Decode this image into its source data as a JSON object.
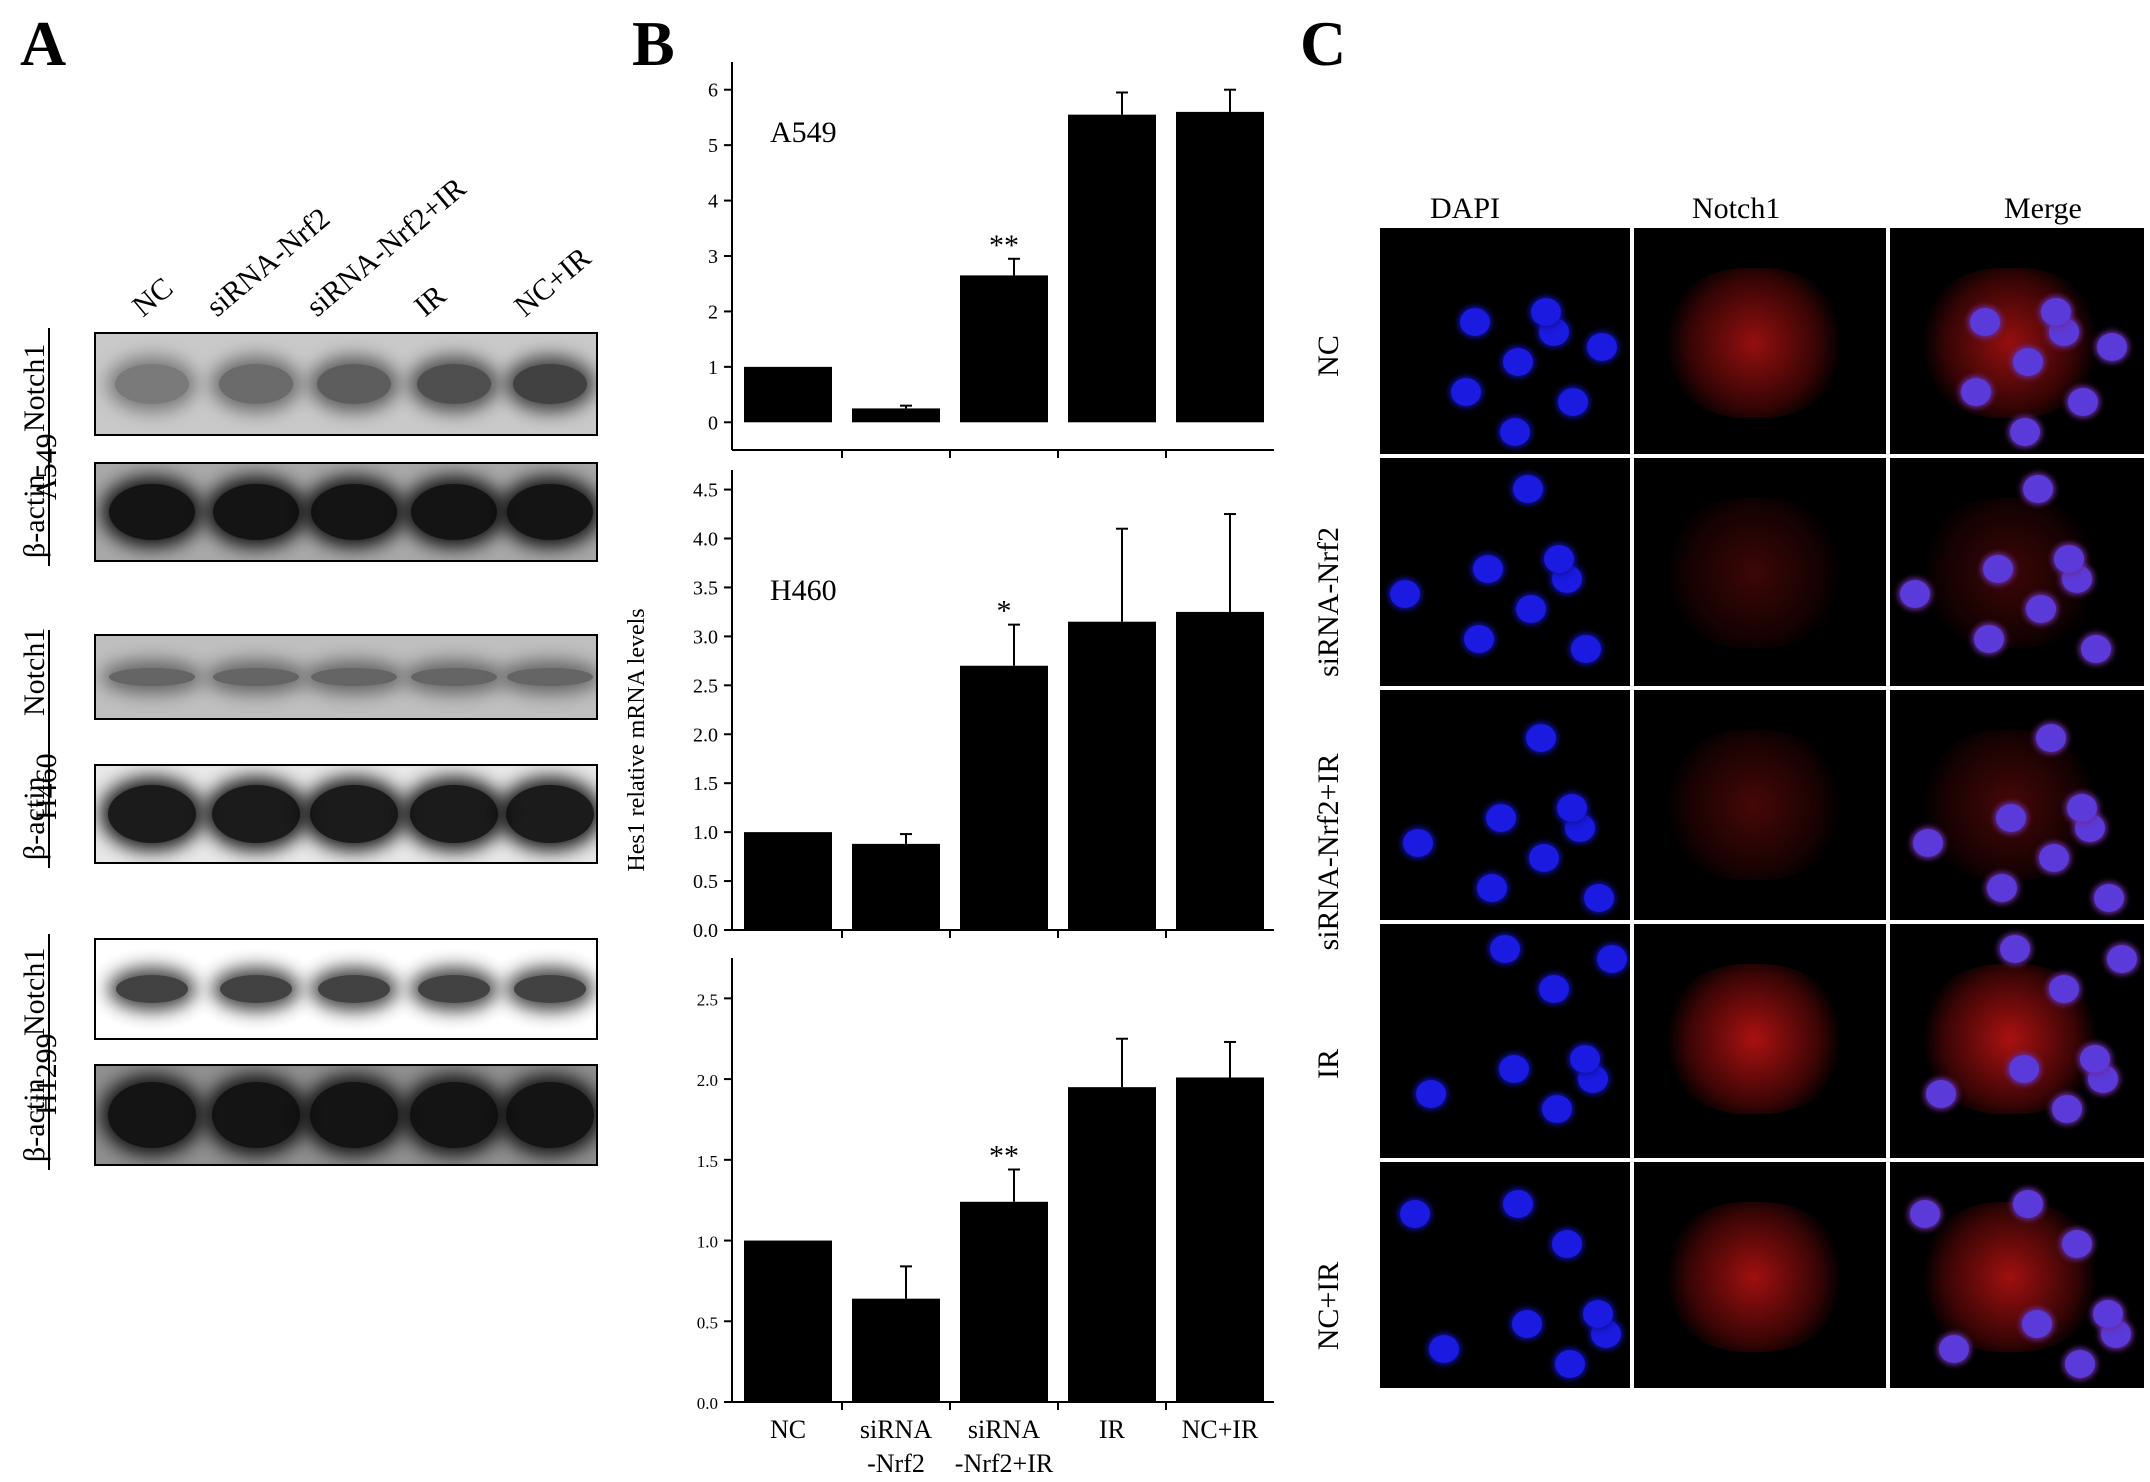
{
  "panels": {
    "a": {
      "letter": "A",
      "lanes": [
        "NC",
        "siRNA-Nrf2",
        "siRNA-Nrf2+IR",
        "IR",
        "NC+IR"
      ],
      "groups": [
        {
          "cell_line": "A549",
          "rows": [
            "Notch1",
            "β-actin"
          ]
        },
        {
          "cell_line": "H460",
          "rows": [
            "Notch1",
            "β-actin"
          ]
        },
        {
          "cell_line": "H1299",
          "rows": [
            "Notch1",
            "β-actin"
          ]
        }
      ]
    },
    "b": {
      "letter": "B"
    },
    "c": {
      "letter": "C",
      "columns": [
        "DAPI",
        "Notch1",
        "Merge"
      ],
      "rows": [
        "NC",
        "siRNA-Nrf2",
        "siRNA-Nrf2+IR",
        "IR",
        "NC+IR"
      ]
    }
  },
  "chart_data": [
    {
      "type": "bar",
      "title": "",
      "annotation": "A549",
      "categories": [
        "NC",
        "siRNA -Nrf2",
        "siRNA -Nrf2+IR",
        "IR",
        "NC+IR"
      ],
      "values": [
        1.0,
        0.25,
        2.65,
        5.55,
        5.6
      ],
      "errors": [
        0.0,
        0.05,
        0.3,
        0.4,
        0.4
      ],
      "significance": [
        "",
        "",
        "**",
        "",
        ""
      ],
      "ylim": [
        -0.5,
        6.5
      ],
      "yticks": [
        "0",
        "1",
        "2",
        "3",
        "4",
        "5",
        "6"
      ],
      "ylabel": ""
    },
    {
      "type": "bar",
      "title": "",
      "annotation": "H460",
      "categories": [
        "NC",
        "siRNA -Nrf2",
        "siRNA -Nrf2+IR",
        "IR",
        "NC+IR"
      ],
      "values": [
        1.0,
        0.88,
        2.7,
        3.15,
        3.25
      ],
      "errors": [
        0.0,
        0.1,
        0.42,
        0.95,
        1.0
      ],
      "significance": [
        "",
        "",
        "*",
        "",
        ""
      ],
      "ylim": [
        0,
        4.7
      ],
      "yticks": [
        "0.0",
        "0.5",
        "1.0",
        "1.5",
        "2.0",
        "2.5",
        "3.0",
        "3.5",
        "4.0",
        "4.5"
      ],
      "ylabel": "Hes1 relative mRNA levels"
    },
    {
      "type": "bar",
      "title": "",
      "annotation": "",
      "categories": [
        "NC",
        "siRNA -Nrf2",
        "siRNA -Nrf2+IR",
        "IR",
        "NC+IR"
      ],
      "xticks": [
        "NC",
        "siRNA",
        "-Nrf2",
        "siRNA",
        "-Nrf2+IR",
        "IR",
        "NC+IR"
      ],
      "values": [
        1.0,
        0.64,
        1.24,
        1.95,
        2.01
      ],
      "errors": [
        0.0,
        0.2,
        0.2,
        0.3,
        0.22
      ],
      "significance": [
        "",
        "",
        "**",
        "",
        ""
      ],
      "ylim": [
        0,
        2.75
      ],
      "yticks": [
        "0.0",
        "0.5",
        "1.0",
        "1.5",
        "2.0",
        "2.5"
      ],
      "ylabel": ""
    }
  ]
}
